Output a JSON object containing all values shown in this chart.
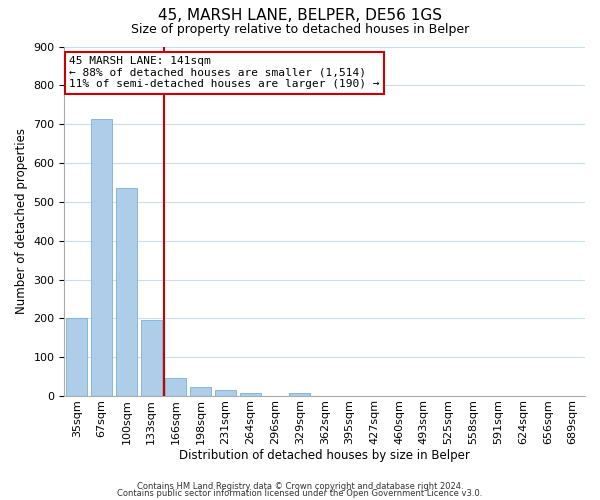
{
  "title": "45, MARSH LANE, BELPER, DE56 1GS",
  "subtitle": "Size of property relative to detached houses in Belper",
  "xlabel": "Distribution of detached houses by size in Belper",
  "ylabel": "Number of detached properties",
  "bar_labels": [
    "35sqm",
    "67sqm",
    "100sqm",
    "133sqm",
    "166sqm",
    "198sqm",
    "231sqm",
    "264sqm",
    "296sqm",
    "329sqm",
    "362sqm",
    "395sqm",
    "427sqm",
    "460sqm",
    "493sqm",
    "525sqm",
    "558sqm",
    "591sqm",
    "624sqm",
    "656sqm",
    "689sqm"
  ],
  "bar_values": [
    201,
    713,
    535,
    195,
    47,
    22,
    15,
    9,
    0,
    8,
    0,
    0,
    0,
    0,
    0,
    0,
    0,
    0,
    0,
    0,
    0
  ],
  "bar_color": "#aecde8",
  "bar_edge_color": "#7aafd4",
  "property_line_label": "45 MARSH LANE: 141sqm",
  "annotation_line1": "← 88% of detached houses are smaller (1,514)",
  "annotation_line2": "11% of semi-detached houses are larger (190) →",
  "annotation_box_facecolor": "#ffffff",
  "annotation_box_edgecolor": "#cc0000",
  "vline_color": "#cc0000",
  "ylim": [
    0,
    900
  ],
  "yticks": [
    0,
    100,
    200,
    300,
    400,
    500,
    600,
    700,
    800,
    900
  ],
  "footer_line1": "Contains HM Land Registry data © Crown copyright and database right 2024.",
  "footer_line2": "Contains public sector information licensed under the Open Government Licence v3.0.",
  "background_color": "#ffffff",
  "grid_color": "#c8ddef",
  "title_fontsize": 11,
  "subtitle_fontsize": 9,
  "axis_label_fontsize": 8.5,
  "tick_fontsize": 8,
  "footer_fontsize": 6
}
